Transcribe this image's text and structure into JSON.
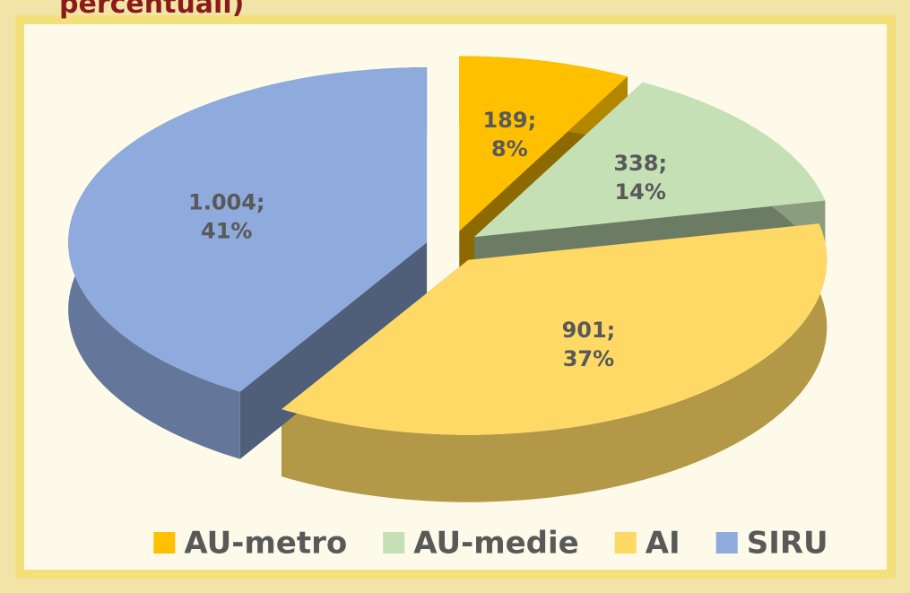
{
  "chart_data": {
    "type": "pie3d",
    "title": "percentuali)",
    "categories": [
      "AU-metro",
      "AU-medie",
      "AI",
      "SIRU"
    ],
    "values": [
      189,
      338,
      901,
      1004
    ],
    "value_labels": [
      "189;",
      "338;",
      "901;",
      "1.004;"
    ],
    "percent_labels": [
      "8%",
      "14%",
      "37%",
      "41%"
    ],
    "colors": [
      "#ffc000",
      "#c5e0b4",
      "#ffd966",
      "#8faadc"
    ],
    "legend": "bottom"
  }
}
